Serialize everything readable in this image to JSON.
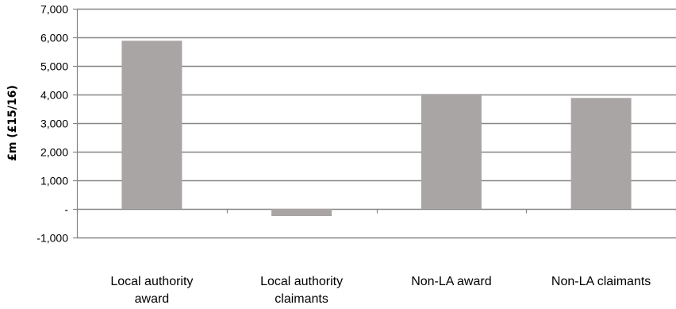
{
  "chart_data": {
    "type": "bar",
    "title": "",
    "xlabel": "",
    "ylabel": "£m (£15/16)",
    "categories": [
      [
        "Local authority",
        "award"
      ],
      [
        "Local authority",
        "claimants"
      ],
      [
        "Non-LA award"
      ],
      [
        "Non-LA claimants"
      ]
    ],
    "values": [
      5880,
      -250,
      4020,
      3880
    ],
    "ylim": [
      -1000,
      7000
    ],
    "yticks": [
      -1000,
      0,
      1000,
      2000,
      3000,
      4000,
      5000,
      6000,
      7000
    ],
    "ytick_labels": [
      "-1,000",
      "-",
      "1,000",
      "2,000",
      "3,000",
      "4,000",
      "5,000",
      "6,000",
      "7,000"
    ],
    "grid": true,
    "legend": "none",
    "colors": {
      "bar": "#a8a5a4",
      "grid": "#868686",
      "axis": "#868686"
    }
  }
}
